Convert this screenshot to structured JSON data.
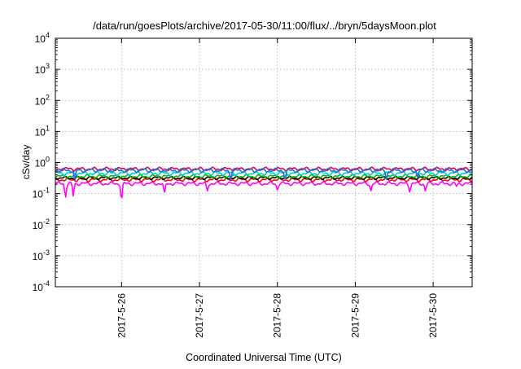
{
  "chart_data": {
    "type": "line",
    "title": "/data/run/goesPlots/archive/2017-05-30/11:00/flux/../bryn/5daysMoon.plot",
    "xlabel": "Coordinated Universal Time (UTC)",
    "ylabel": "cSv/day",
    "yscale": "log",
    "ylim": [
      0.0001,
      10000
    ],
    "xlim_days": [
      -0.85,
      4.5
    ],
    "grid": true,
    "x_ticks": [
      {
        "day": 0,
        "label": "2017-5-26"
      },
      {
        "day": 1,
        "label": "2017-5-27"
      },
      {
        "day": 2,
        "label": "2017-5-28"
      },
      {
        "day": 3,
        "label": "2017-5-29"
      },
      {
        "day": 4,
        "label": "2017-5-30"
      }
    ],
    "y_ticks": [
      {
        "value": 0.0001,
        "base": "10",
        "exp": "-4"
      },
      {
        "value": 0.001,
        "base": "10",
        "exp": "-3"
      },
      {
        "value": 0.01,
        "base": "10",
        "exp": "-2"
      },
      {
        "value": 0.1,
        "base": "10",
        "exp": "-1"
      },
      {
        "value": 1,
        "base": "10",
        "exp": "0"
      },
      {
        "value": 10,
        "base": "10",
        "exp": "1"
      },
      {
        "value": 100,
        "base": "10",
        "exp": "2"
      },
      {
        "value": 1000,
        "base": "10",
        "exp": "3"
      },
      {
        "value": 10000,
        "base": "10",
        "exp": "4"
      }
    ],
    "series": [
      {
        "color": "#ff00ff",
        "base": 0.21,
        "amp": 0.03,
        "dips": [
          {
            "day": -0.72,
            "value": 0.07
          },
          {
            "day": -0.62,
            "value": 0.08
          },
          {
            "day": 0.0,
            "value": 0.05
          },
          {
            "day": 0.55,
            "value": 0.1
          },
          {
            "day": 1.1,
            "value": 0.12
          },
          {
            "day": 2.0,
            "value": 0.13
          },
          {
            "day": 3.2,
            "value": 0.12
          },
          {
            "day": 3.7,
            "value": 0.11
          },
          {
            "day": 3.9,
            "value": 0.12
          },
          {
            "day": 4.3,
            "value": 0.17
          }
        ]
      },
      {
        "color": "#ff0000",
        "base": 0.28,
        "amp": 0.04,
        "dips": []
      },
      {
        "color": "#000000",
        "base": 0.32,
        "amp": 0.04,
        "dips": []
      },
      {
        "color": "#00c000",
        "base": 0.36,
        "amp": 0.05,
        "dips": []
      },
      {
        "color": "#00cccc",
        "base": 0.45,
        "amp": 0.07,
        "dips": []
      },
      {
        "color": "#e0004a",
        "base": 0.62,
        "amp": 0.09,
        "dips": []
      },
      {
        "color": "#1e6fe0",
        "base": 0.56,
        "amp": 0.09,
        "dips": [
          {
            "day": -0.6,
            "value": 0.25
          },
          {
            "day": 1.4,
            "value": 0.28
          },
          {
            "day": 2.1,
            "value": 0.26
          },
          {
            "day": 3.4,
            "value": 0.27
          },
          {
            "day": 3.8,
            "value": 0.3
          }
        ]
      }
    ]
  }
}
